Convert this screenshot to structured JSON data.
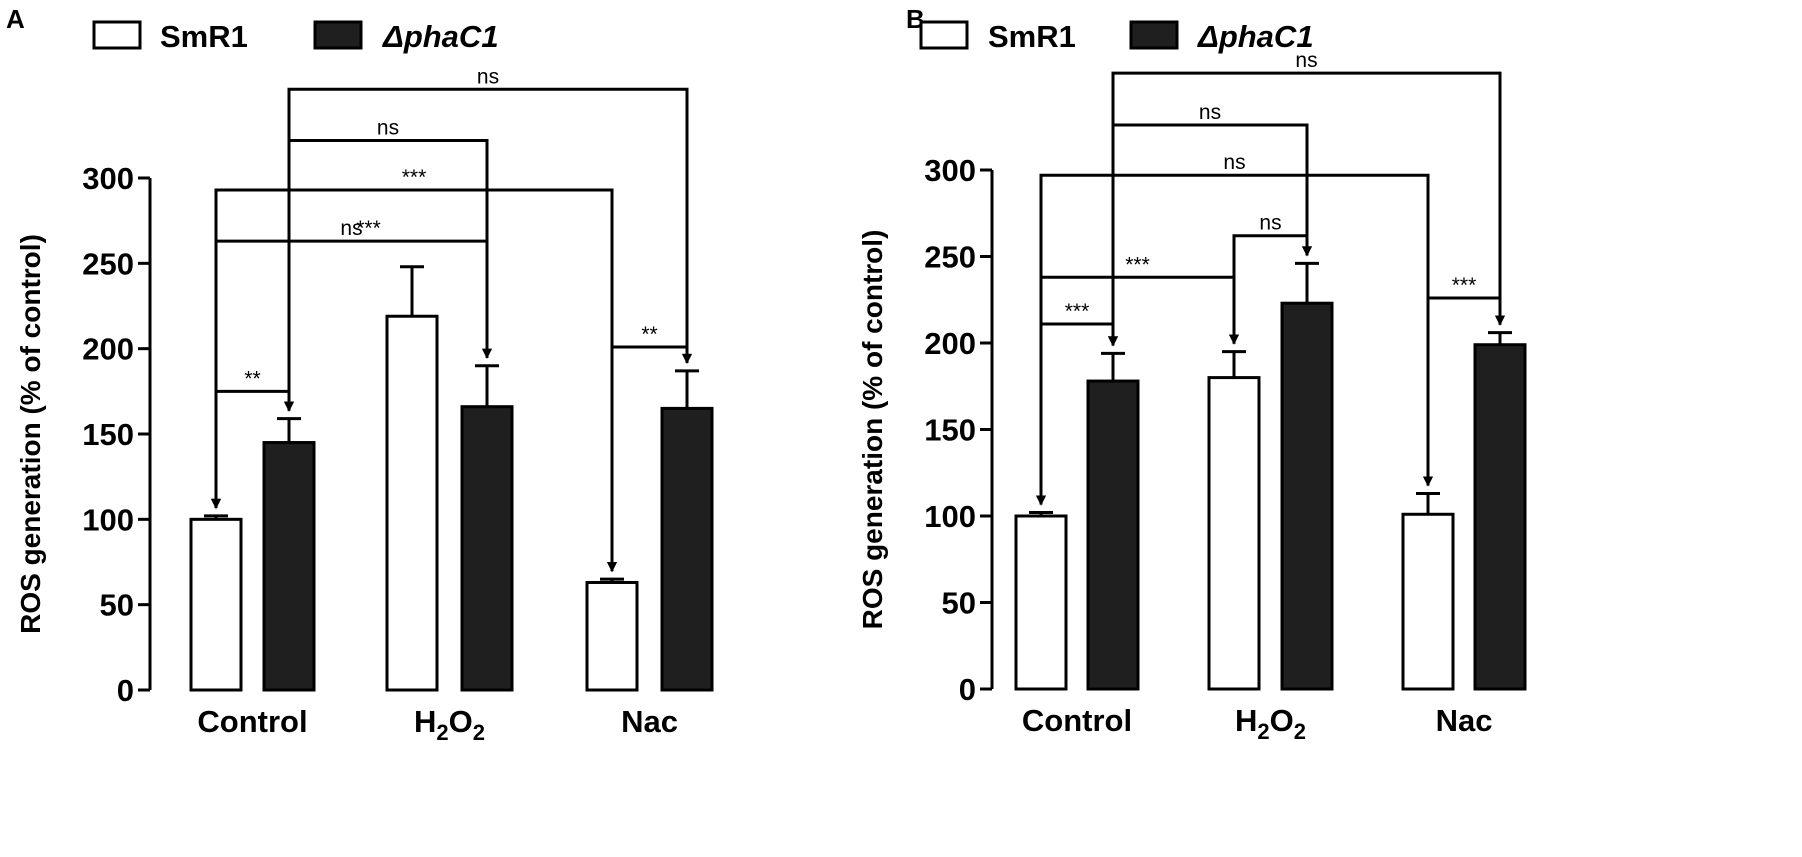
{
  "chart_data": [
    {
      "panel": "A",
      "type": "bar",
      "ylabel": "ROS generation (% of control)",
      "ylim": [
        0,
        300
      ],
      "yticks": [
        0,
        50,
        100,
        150,
        200,
        250,
        300
      ],
      "categories": [
        {
          "label": "Control"
        },
        {
          "label": "H2O2",
          "base": "H",
          "sub1": "2",
          "mid": "O",
          "sub2": "2"
        },
        {
          "label": "Nac"
        }
      ],
      "series": [
        {
          "name": "SmR1",
          "style": "open",
          "values": [
            100,
            219,
            63
          ],
          "errors": [
            2,
            29,
            2
          ]
        },
        {
          "name": "ΔphaC1",
          "style": "filled",
          "values": [
            145,
            166,
            165
          ],
          "errors": [
            14,
            24,
            22
          ]
        }
      ],
      "comparisons": [
        {
          "from": [
            0,
            0
          ],
          "to": [
            0,
            1
          ],
          "label": "**",
          "level": 175
        },
        {
          "from": [
            2,
            0
          ],
          "to": [
            2,
            1
          ],
          "label": "**",
          "level": 201
        },
        {
          "from": [
            0,
            0
          ],
          "to": [
            1,
            1
          ],
          "label": "ns",
          "level": 263
        },
        {
          "from": [
            0,
            0
          ],
          "to": [
            2,
            0
          ],
          "label": "***",
          "level": 293
        },
        {
          "from": [
            0,
            1
          ],
          "to": [
            1,
            1
          ],
          "label": "ns",
          "level": 322
        },
        {
          "from": [
            0,
            1
          ],
          "to": [
            2,
            1
          ],
          "label": "ns",
          "level": 352
        }
      ],
      "extra_labels": [
        {
          "text": "***",
          "near": "between Control and H2O2"
        }
      ]
    },
    {
      "panel": "B",
      "type": "bar",
      "ylabel": "ROS generation (% of control)",
      "ylim": [
        0,
        300
      ],
      "yticks": [
        0,
        50,
        100,
        150,
        200,
        250,
        300
      ],
      "categories": [
        {
          "label": "Control"
        },
        {
          "label": "H2O2",
          "base": "H",
          "sub1": "2",
          "mid": "O",
          "sub2": "2"
        },
        {
          "label": "Nac"
        }
      ],
      "series": [
        {
          "name": "SmR1",
          "style": "open",
          "values": [
            100,
            180,
            101
          ],
          "errors": [
            2,
            15,
            12
          ]
        },
        {
          "name": "ΔphaC1",
          "style": "filled",
          "values": [
            178,
            223,
            199
          ],
          "errors": [
            16,
            23,
            7
          ]
        }
      ],
      "comparisons": [
        {
          "from": [
            0,
            0
          ],
          "to": [
            0,
            1
          ],
          "label": "***",
          "level": 211
        },
        {
          "from": [
            2,
            0
          ],
          "to": [
            2,
            1
          ],
          "label": "***",
          "level": 226
        },
        {
          "from": [
            0,
            0
          ],
          "to": [
            1,
            0
          ],
          "label": "***",
          "level": 238
        },
        {
          "from": [
            1,
            0
          ],
          "to": [
            1,
            1
          ],
          "label": "ns",
          "level": 262
        },
        {
          "from": [
            0,
            0
          ],
          "to": [
            2,
            0
          ],
          "label": "ns",
          "level": 297
        },
        {
          "from": [
            0,
            1
          ],
          "to": [
            1,
            1
          ],
          "label": "ns",
          "level": 326
        },
        {
          "from": [
            0,
            1
          ],
          "to": [
            2,
            1
          ],
          "label": "ns",
          "level": 356
        }
      ],
      "extra_labels": []
    }
  ]
}
